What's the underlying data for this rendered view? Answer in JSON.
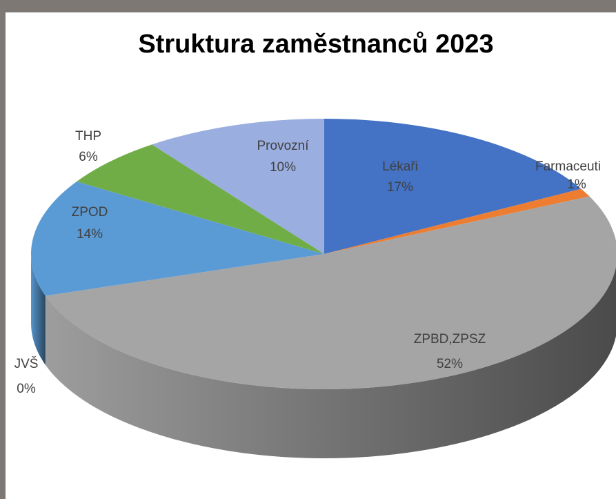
{
  "chart_data": {
    "type": "pie3d",
    "title": "Struktura zaměstnanců 2023",
    "categories": [
      "Lékaři",
      "Farmaceuti",
      "ZPBD,ZPSZ",
      "JVŠ",
      "ZPOD",
      "THP",
      "Provozní"
    ],
    "values": [
      17,
      1,
      52,
      0,
      14,
      6,
      10
    ],
    "value_labels": [
      "17%",
      "1%",
      "52%",
      "0%",
      "14%",
      "6%",
      "10%"
    ],
    "colors": [
      "#4472c4",
      "#ed7d31",
      "#a5a5a5",
      "#ffc000",
      "#5b9bd5",
      "#70ad47",
      "#9aaedf"
    ]
  }
}
